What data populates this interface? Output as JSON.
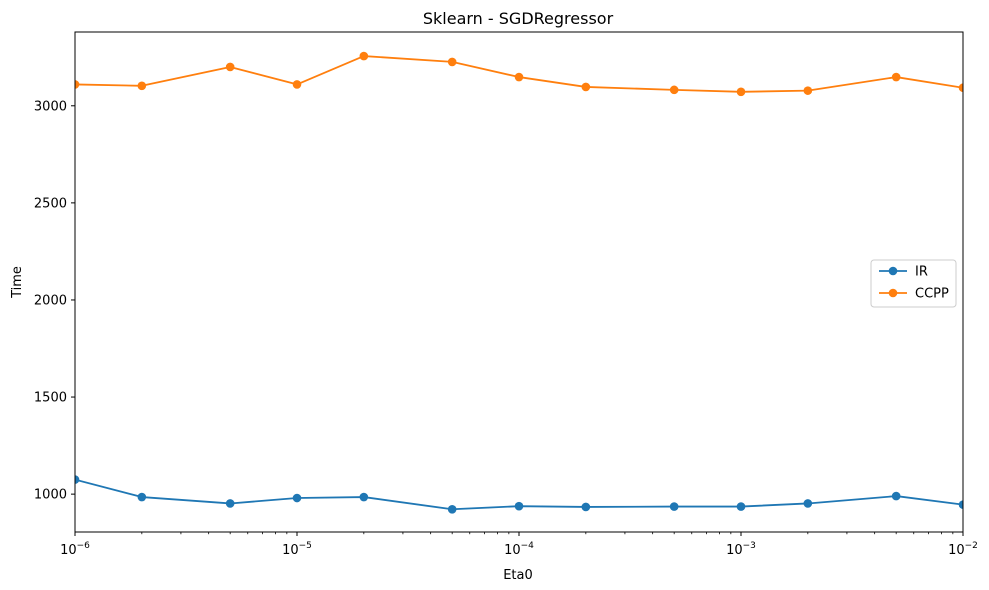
{
  "chart_data": {
    "type": "line",
    "title": "Sklearn - SGDRegressor",
    "xlabel": "Eta0",
    "ylabel": "Time",
    "xscale": "log",
    "xlim": [
      1e-06,
      0.01
    ],
    "ylim": [
      805,
      3380
    ],
    "x": [
      1e-06,
      2e-06,
      5e-06,
      1e-05,
      2e-05,
      5e-05,
      0.0001,
      0.0002,
      0.0005,
      0.001,
      0.002,
      0.005,
      0.01
    ],
    "x_ticks": [
      {
        "base": "10",
        "exp": "−6"
      },
      {
        "base": "10",
        "exp": "−5"
      },
      {
        "base": "10",
        "exp": "−4"
      },
      {
        "base": "10",
        "exp": "−3"
      },
      {
        "base": "10",
        "exp": "−2"
      }
    ],
    "y_ticks": [
      "1000",
      "1500",
      "2000",
      "2500",
      "3000"
    ],
    "y_tick_values": [
      1000,
      1500,
      2000,
      2500,
      3000
    ],
    "grid": false,
    "legend_position": "center-right",
    "series": [
      {
        "name": "IR",
        "color": "#1f77b4",
        "values": [
          1075,
          985,
          952,
          980,
          985,
          922,
          938,
          934,
          936,
          936,
          952,
          990,
          946
        ]
      },
      {
        "name": "CCPP",
        "color": "#ff7f0e",
        "values": [
          3110,
          3103,
          3200,
          3110,
          3256,
          3226,
          3148,
          3097,
          3082,
          3072,
          3078,
          3148,
          3093
        ]
      }
    ]
  }
}
